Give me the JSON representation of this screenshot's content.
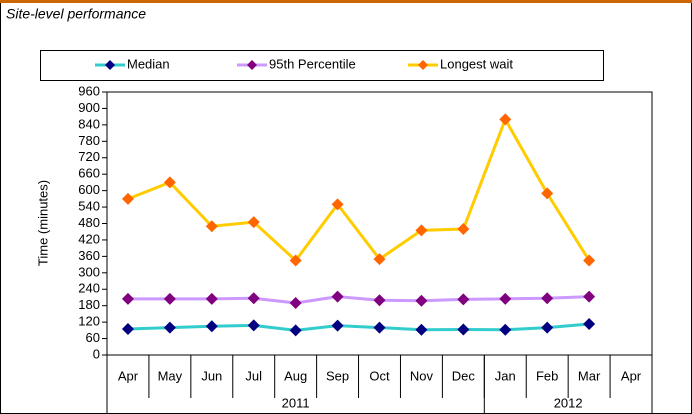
{
  "chart_data": {
    "type": "line",
    "title": "Site-level performance",
    "y_label": "Time (minutes)",
    "categories": [
      "Apr",
      "May",
      "Jun",
      "Jul",
      "Aug",
      "Sep",
      "Oct",
      "Nov",
      "Dec",
      "Jan",
      "Feb",
      "Mar",
      "Apr"
    ],
    "category_groups": [
      {
        "label": "2011",
        "span": 9
      },
      {
        "label": "2012",
        "span": 4
      }
    ],
    "series": [
      {
        "name": "Median",
        "color": "#33cccc",
        "marker_color": "#000080",
        "values": [
          95,
          100,
          105,
          108,
          90,
          107,
          100,
          92,
          93,
          92,
          100,
          113,
          null
        ]
      },
      {
        "name": "95th Percentile",
        "color": "#cc99ff",
        "marker_color": "#800080",
        "values": [
          205,
          205,
          205,
          207,
          190,
          213,
          200,
          198,
          203,
          205,
          207,
          213,
          null
        ]
      },
      {
        "name": "Longest wait",
        "color": "#ffcc00",
        "marker_color": "#ff6600",
        "values": [
          570,
          630,
          470,
          485,
          345,
          550,
          350,
          455,
          460,
          860,
          590,
          345,
          null
        ]
      }
    ],
    "ylim": [
      0,
      960
    ],
    "yticks": [
      0,
      60,
      120,
      180,
      240,
      300,
      360,
      420,
      480,
      540,
      600,
      660,
      720,
      780,
      840,
      900,
      960
    ],
    "grid": false,
    "legend": "top"
  }
}
